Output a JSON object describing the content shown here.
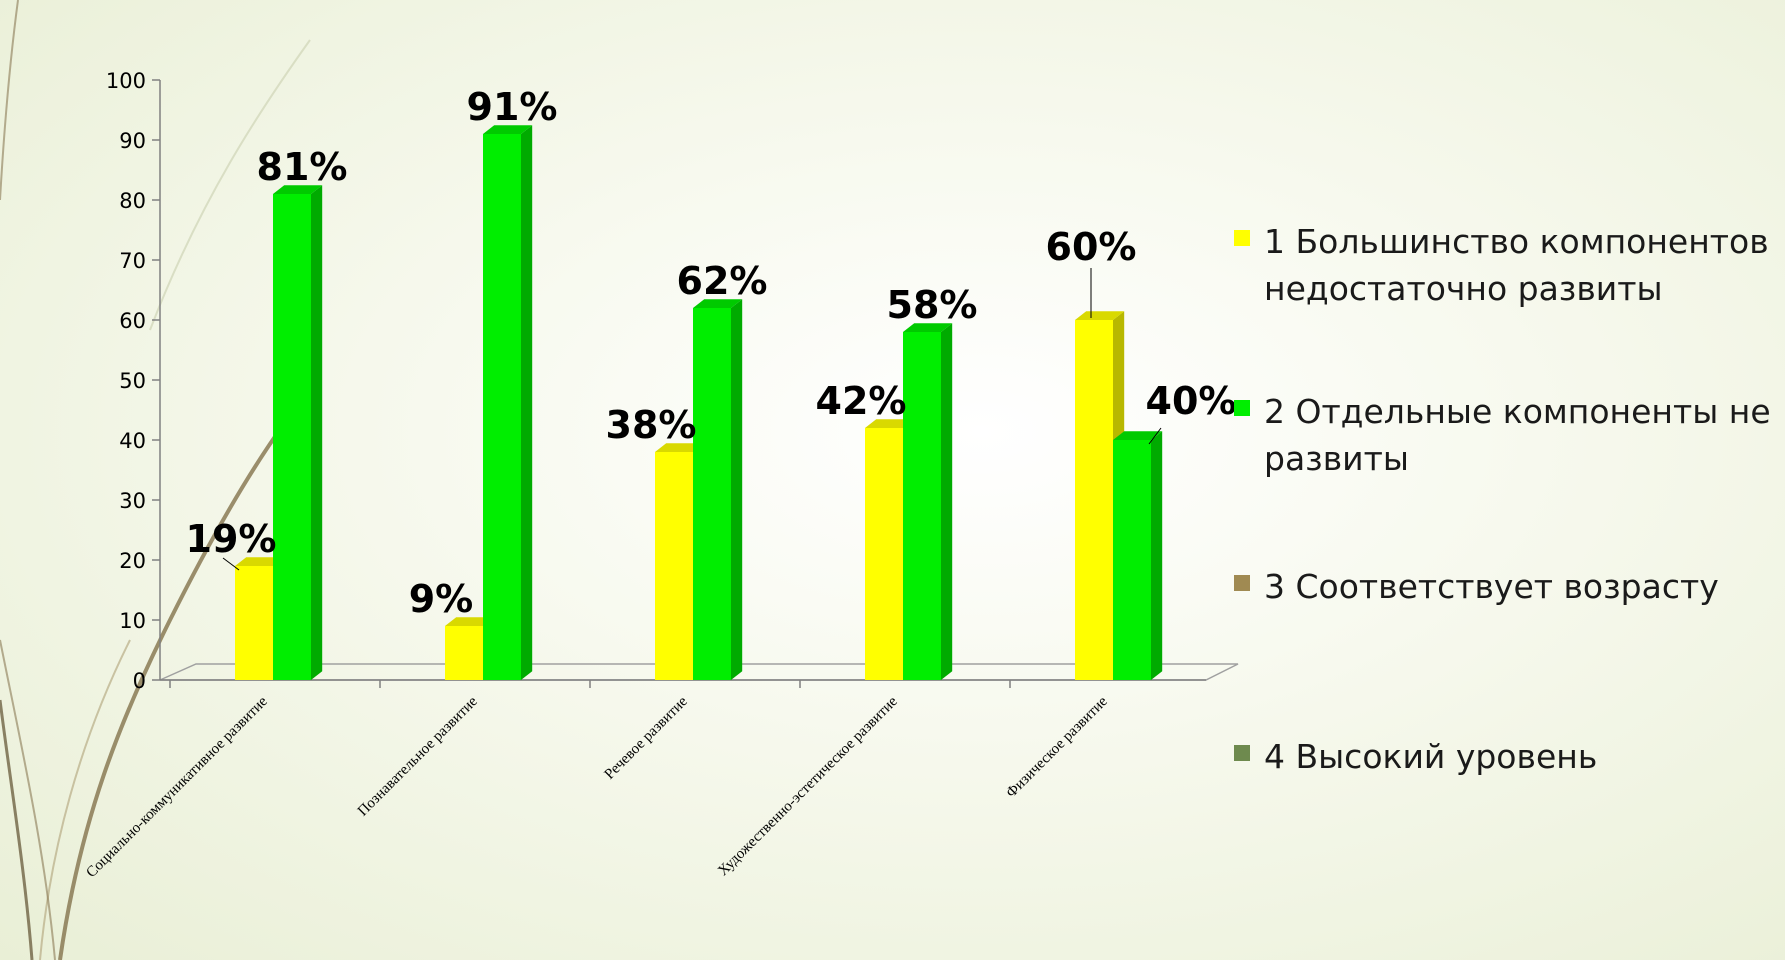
{
  "chart_data": {
    "type": "bar",
    "categories": [
      "Социально-коммуникативное развитие",
      "Познавательное развитие",
      "Речевое развитие",
      "Художественно-эстетическое развитие",
      "Физическое развитие"
    ],
    "series": [
      {
        "name": "1 Большинство компонентов недостаточно развиты",
        "values": [
          19,
          9,
          38,
          42,
          60
        ],
        "labels": [
          "19%",
          "9%",
          "38%",
          "42%",
          "60%"
        ],
        "color": "#ffff00"
      },
      {
        "name": "2 Отдельные компоненты не развиты",
        "values": [
          81,
          91,
          62,
          58,
          40
        ],
        "labels": [
          "81%",
          "91%",
          "62%",
          "58%",
          "40%"
        ],
        "color": "#00ee00"
      },
      {
        "name": "3 Соответствует возрасту",
        "values": [
          0,
          0,
          0,
          0,
          0
        ],
        "labels": [
          "",
          "",
          "",
          "",
          ""
        ],
        "color": "#a08a52"
      },
      {
        "name": "4 Высокий уровень",
        "values": [
          0,
          0,
          0,
          0,
          0
        ],
        "labels": [
          "",
          "",
          "",
          "",
          ""
        ],
        "color": "#6e8a4e"
      }
    ],
    "ylim": [
      0,
      100
    ],
    "yticks": [
      0,
      10,
      20,
      30,
      40,
      50,
      60,
      70,
      80,
      90,
      100
    ],
    "legend_position": "right",
    "grid": false
  }
}
